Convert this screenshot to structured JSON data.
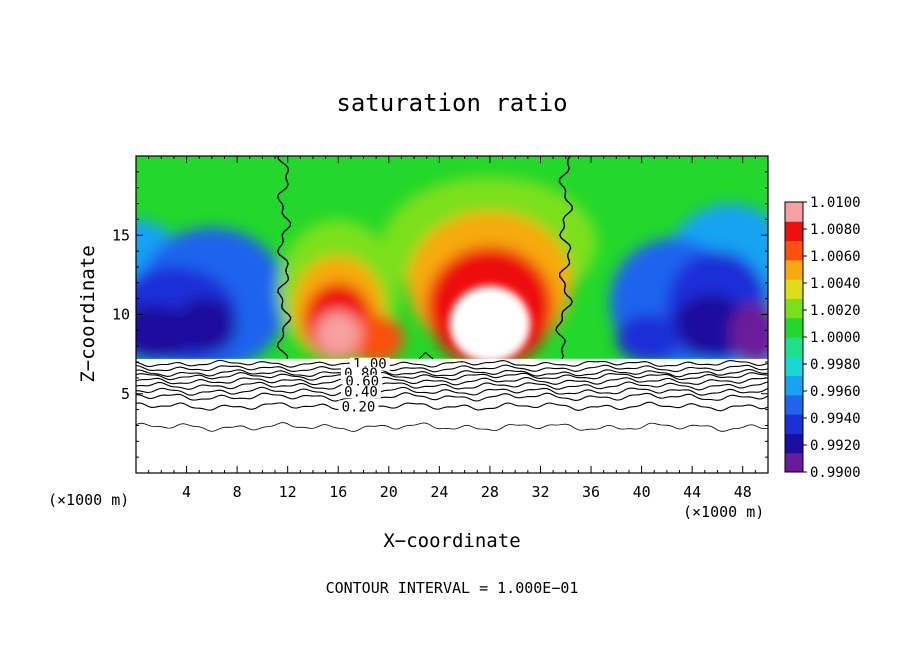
{
  "chart_data": {
    "type": "heatmap",
    "title": "saturation ratio",
    "xlabel": "X−coordinate",
    "ylabel": "Z−coordinate",
    "x_unit_label": "(×1000 m)",
    "z_unit_label": "(×1000 m)",
    "footer": "CONTOUR INTERVAL = 1.000E−01",
    "xlim": [
      0,
      50
    ],
    "zlim": [
      0,
      20
    ],
    "x_ticks": [
      4,
      8,
      12,
      16,
      20,
      24,
      28,
      32,
      36,
      40,
      44,
      48
    ],
    "x_tick_labels": [
      "4",
      "8",
      "12",
      "16",
      "20",
      "24",
      "28",
      "32",
      "36",
      "40",
      "44",
      "48"
    ],
    "z_ticks": [
      5,
      10,
      15
    ],
    "z_tick_labels": [
      "5",
      "10",
      "15"
    ],
    "colorbar": {
      "min": 0.99,
      "max": 1.01,
      "labels": [
        "1.0100",
        "1.0080",
        "1.0060",
        "1.0040",
        "1.0020",
        "1.0000",
        "0.9980",
        "0.9960",
        "0.9940",
        "0.9920",
        "0.9900"
      ],
      "colors": [
        "#6a1b9a",
        "#1a0f9e",
        "#1f2fd8",
        "#1f63ee",
        "#16a3f2",
        "#18d9d2",
        "#1de08a",
        "#22d82a",
        "#7be01c",
        "#dede18",
        "#f6aa10",
        "#fa5010",
        "#ee1010",
        "#f6a0a0"
      ]
    },
    "shaded_field_ranges": {
      "x": [
        0,
        50
      ],
      "z": [
        7.2,
        20
      ]
    },
    "contour_line_labels": [
      "1.00",
      "0.80",
      "0.60",
      "0.40",
      "0.20"
    ],
    "cloud_fraction_contours": [
      {
        "level": 1.0,
        "label": "1.00",
        "z_mean": 6.9
      },
      {
        "level": 0.9,
        "z_mean": 6.6
      },
      {
        "level": 0.8,
        "label": "0.80",
        "z_mean": 6.3
      },
      {
        "level": 0.7,
        "z_mean": 6.1
      },
      {
        "level": 0.6,
        "label": "0.60",
        "z_mean": 5.8
      },
      {
        "level": 0.5,
        "z_mean": 5.5
      },
      {
        "level": 0.4,
        "label": "0.40",
        "z_mean": 5.15
      },
      {
        "level": 0.3,
        "z_mean": 4.8
      },
      {
        "level": 0.2,
        "label": "0.20",
        "z_mean": 4.2
      },
      {
        "level": 0.1,
        "z_mean": 2.9
      }
    ],
    "saturation_1_contour_x": [
      11.7,
      34.0
    ]
  }
}
